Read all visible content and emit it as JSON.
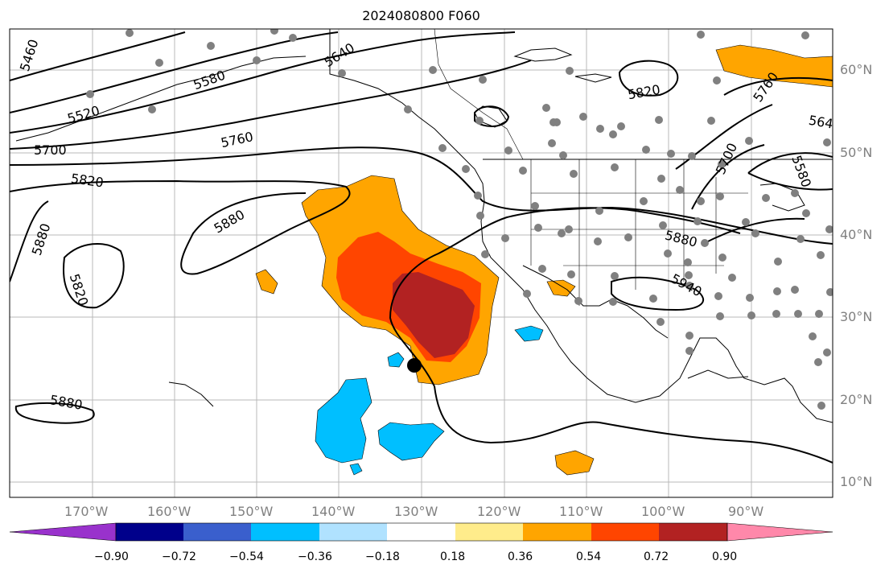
{
  "title": "2024080800 F060",
  "lat_labels": [
    "60°N",
    "50°N",
    "40°N",
    "30°N",
    "20°N",
    "10°N"
  ],
  "lon_labels": [
    "170°W",
    "160°W",
    "150°W",
    "140°W",
    "130°W",
    "120°W",
    "110°W",
    "100°W",
    "90°W"
  ],
  "contour_labels": [
    "5460",
    "5580",
    "5640",
    "5520",
    "5700",
    "5760",
    "5820",
    "5880",
    "5880",
    "5820",
    "5880",
    "5880",
    "5820",
    "5880",
    "5940",
    "5760",
    "5700",
    "5580",
    "564"
  ],
  "colorbar": {
    "ticks": [
      "−0.90",
      "−0.72",
      "−0.54",
      "−0.36",
      "−0.18",
      "0.18",
      "0.36",
      "0.54",
      "0.72",
      "0.90"
    ],
    "colors": [
      "#9932cc",
      "#00008b",
      "#3a5fcd",
      "#00bfff",
      "#b0e2ff",
      "#ffffff",
      "#ffec8b",
      "#ffa500",
      "#ff4500",
      "#b22222",
      "#ff88aa"
    ]
  },
  "colors": {
    "positive_low": "#ffa500",
    "positive_mid": "#ff4500",
    "positive_high": "#b22222",
    "negative_mid": "#00bfff",
    "station": "#808080",
    "label_gray": "#808080"
  }
}
